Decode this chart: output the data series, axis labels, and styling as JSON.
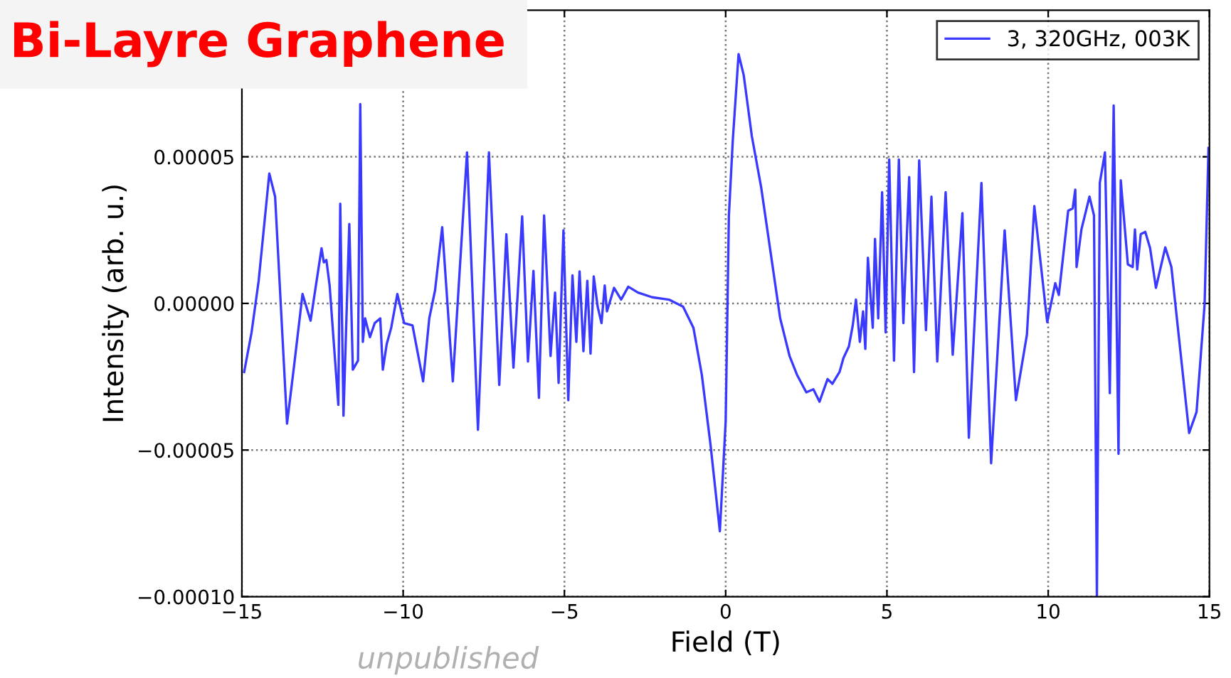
{
  "chart_data": {
    "type": "line",
    "title": "Bi-Layre Graphene",
    "xlabel": "Field (T)",
    "ylabel": "Intensity (arb. u.)",
    "annotations": [
      "unpublished"
    ],
    "xlim": [
      -15,
      15
    ],
    "xticks": [
      {
        "value": -15,
        "label": "−15"
      },
      {
        "value": -10,
        "label": "−10"
      },
      {
        "value": -5,
        "label": "−5"
      },
      0,
      5,
      10,
      15
    ],
    "ylim": [
      -0.0001,
      0.0001
    ],
    "yticks": [
      {
        "value": -0.0001,
        "label": "−0.00010"
      },
      {
        "value": -5e-05,
        "label": "−0.00005"
      },
      {
        "value": 0,
        "label": "0.00000"
      },
      {
        "value": 5e-05,
        "label": "0.00005"
      }
    ],
    "grid": true,
    "legend": "top right",
    "line_style": "solid",
    "marker": "none",
    "series": [
      {
        "name": "3, 320GHz, 003K",
        "color": "#3a3aff",
        "x": [
          -14.93,
          -14.7,
          -14.48,
          -14.15,
          -13.97,
          -13.6,
          -13.38,
          -13.12,
          -12.87,
          -12.53,
          -12.46,
          -12.38,
          -12.28,
          -12.01,
          -11.95,
          -11.85,
          -11.67,
          -11.56,
          -11.4,
          -11.33,
          -11.25,
          -11.18,
          -11.03,
          -10.88,
          -10.71,
          -10.63,
          -10.51,
          -10.37,
          -10.18,
          -9.97,
          -9.71,
          -9.38,
          -9.19,
          -9.01,
          -8.79,
          -8.46,
          -8.02,
          -7.68,
          -7.34,
          -7.02,
          -6.8,
          -6.58,
          -6.31,
          -6.13,
          -5.96,
          -5.79,
          -5.63,
          -5.43,
          -5.29,
          -5.18,
          -5.03,
          -4.88,
          -4.75,
          -4.63,
          -4.53,
          -4.41,
          -4.29,
          -4.19,
          -4.09,
          -3.97,
          -3.85,
          -3.75,
          -3.68,
          -3.46,
          -3.24,
          -3.02,
          -2.72,
          -2.28,
          -1.76,
          -1.32,
          -1.0,
          -0.74,
          -0.47,
          -0.18,
          0.0,
          0.1,
          0.22,
          0.4,
          0.56,
          0.81,
          1.1,
          1.69,
          1.98,
          2.21,
          2.5,
          2.72,
          2.91,
          3.16,
          3.31,
          3.53,
          3.65,
          3.82,
          3.94,
          4.04,
          4.16,
          4.26,
          4.33,
          4.41,
          4.56,
          4.63,
          4.73,
          4.85,
          4.96,
          5.07,
          5.22,
          5.37,
          5.51,
          5.69,
          5.84,
          6.0,
          6.21,
          6.38,
          6.56,
          6.82,
          7.04,
          7.34,
          7.54,
          7.93,
          8.23,
          8.65,
          9.0,
          9.34,
          9.57,
          9.97,
          10.22,
          10.33,
          10.62,
          10.76,
          10.84,
          10.88,
          11.03,
          11.28,
          11.42,
          11.51,
          11.6,
          11.76,
          11.91,
          12.03,
          12.18,
          12.25,
          12.47,
          12.62,
          12.69,
          12.76,
          12.87,
          13.01,
          13.16,
          13.34,
          13.63,
          13.82,
          14.37,
          14.6,
          14.85,
          14.97
        ],
        "values": [
          -2.34e-05,
          -9.9e-06,
          7.7e-06,
          4.43e-05,
          3.64e-05,
          -4.1e-05,
          -2.11e-05,
          3.2e-06,
          -5.9e-06,
          1.88e-05,
          1.4e-05,
          1.48e-05,
          6.1e-06,
          -3.46e-05,
          3.4e-05,
          -3.83e-05,
          2.71e-05,
          -2.26e-05,
          -1.95e-05,
          6.8e-05,
          -1.31e-05,
          -5.1e-06,
          -1.15e-05,
          -6.7e-06,
          -5.1e-06,
          -2.26e-05,
          -1.39e-05,
          -8.3e-06,
          3.2e-06,
          -6.7e-06,
          -7.5e-06,
          -2.66e-05,
          -5.1e-06,
          4.5e-06,
          2.6e-05,
          -2.66e-05,
          5.15e-05,
          -4.31e-05,
          5.15e-05,
          -2.78e-05,
          2.36e-05,
          -2.19e-05,
          2.97e-05,
          -1.98e-05,
          1.11e-05,
          -3.22e-05,
          3e-05,
          -1.79e-05,
          3.7e-06,
          -2.71e-05,
          2.49e-05,
          -3.3e-05,
          9.6e-06,
          -1.31e-05,
          1.09e-05,
          -1.63e-05,
          7.7e-06,
          -1.71e-05,
          9.2e-06,
          -1.1e-06,
          -6.7e-06,
          6.1e-06,
          -2.7e-06,
          5.3e-06,
          1.3e-06,
          5.7e-06,
          3.7e-06,
          2.1e-06,
          1.3e-06,
          -1.1e-06,
          -8.3e-06,
          -2.43e-05,
          -4.82e-05,
          -7.77e-05,
          -4.02e-05,
          3e-05,
          5.55e-05,
          8.5e-05,
          7.78e-05,
          5.71e-05,
          3.96e-05,
          -5.1e-06,
          -1.79e-05,
          -2.43e-05,
          -3.03e-05,
          -2.93e-05,
          -3.35e-05,
          -2.58e-05,
          -2.74e-05,
          -2.34e-05,
          -1.87e-05,
          -1.47e-05,
          -7.5e-06,
          1.3e-06,
          -1.31e-05,
          -2.7e-06,
          -1.55e-05,
          1.56e-05,
          -8.3e-06,
          2.2e-05,
          -5.1e-06,
          3.79e-05,
          -9.9e-06,
          4.91e-05,
          -1.95e-05,
          4.91e-05,
          -6.7e-06,
          4.31e-05,
          -2.34e-05,
          4.88e-05,
          -9.1e-06,
          3.64e-05,
          -1.98e-05,
          3.79e-05,
          -1.75e-05,
          3.08e-05,
          -4.58e-05,
          4.11e-05,
          -5.45e-05,
          2.49e-05,
          -3.3e-05,
          -1.07e-05,
          3.32e-05,
          -6.4e-06,
          6.9e-06,
          2.9e-06,
          3.16e-05,
          3.24e-05,
          3.88e-05,
          1.24e-05,
          2.52e-05,
          3.64e-05,
          3e-05,
          -0.0001,
          4.11e-05,
          5.15e-05,
          -3.06e-05,
          6.75e-05,
          -5.13e-05,
          4.2e-05,
          1.33e-05,
          1.24e-05,
          2.52e-05,
          1.16e-05,
          2.36e-05,
          2.44e-05,
          1.88e-05,
          5.3e-06,
          1.91e-05,
          1.24e-05,
          -4.42e-05,
          -3.7e-05,
          -3e-07,
          5.3e-05
        ]
      }
    ]
  }
}
